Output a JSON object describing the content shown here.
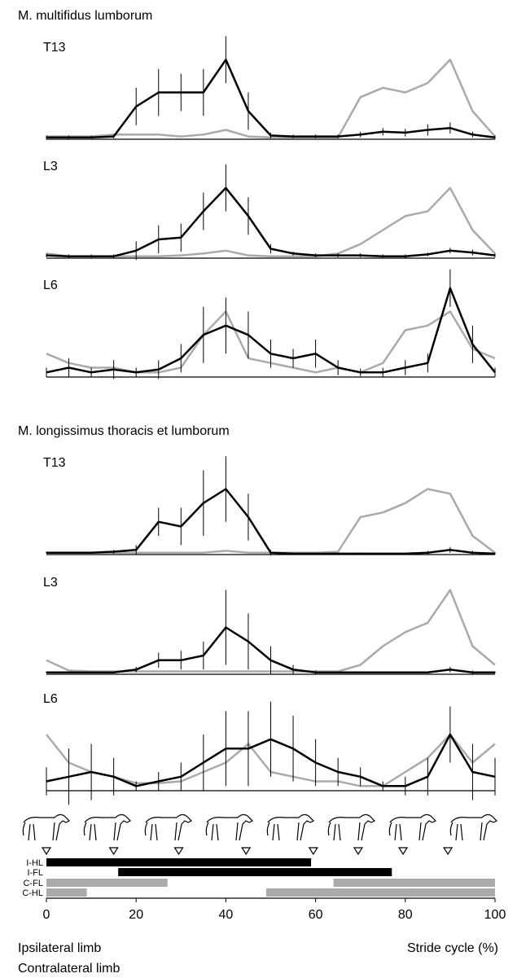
{
  "section_titles": [
    "M. multifidus lumborum",
    "M. longissimus thoracis et lumborum"
  ],
  "legend": [
    {
      "label": "Ipsilateral limb",
      "color": "#000000"
    },
    {
      "label": "Contralateral limb",
      "color": "#aaaaaa"
    }
  ],
  "chart_data": [
    {
      "type": "line",
      "label": "T13",
      "ylim": [
        0,
        1
      ],
      "xlim": [
        0,
        100
      ],
      "x": [
        0,
        5,
        10,
        15,
        20,
        25,
        30,
        35,
        40,
        45,
        50,
        55,
        60,
        65,
        70,
        75,
        80,
        85,
        90,
        95,
        100
      ],
      "series": [
        {
          "color": "#000000",
          "values": [
            0.02,
            0.02,
            0.02,
            0.03,
            0.35,
            0.5,
            0.5,
            0.5,
            0.85,
            0.3,
            0.04,
            0.03,
            0.03,
            0.03,
            0.05,
            0.08,
            0.07,
            0.1,
            0.12,
            0.05,
            0.02
          ],
          "errors": [
            0.02,
            0.02,
            0.02,
            0.02,
            0.2,
            0.25,
            0.2,
            0.25,
            0.25,
            0.2,
            0.03,
            0.02,
            0.02,
            0.02,
            0.03,
            0.04,
            0.04,
            0.06,
            0.06,
            0.03,
            0.02
          ]
        },
        {
          "color": "#aaaaaa",
          "values": [
            0.03,
            0.03,
            0.03,
            0.05,
            0.05,
            0.05,
            0.03,
            0.05,
            0.1,
            0.03,
            0.02,
            0.02,
            0.02,
            0.02,
            0.45,
            0.55,
            0.5,
            0.6,
            0.85,
            0.3,
            0.03
          ]
        }
      ]
    },
    {
      "type": "line",
      "label": "L3",
      "ylim": [
        0,
        1
      ],
      "xlim": [
        0,
        100
      ],
      "x": [
        0,
        5,
        10,
        15,
        20,
        25,
        30,
        35,
        40,
        45,
        50,
        55,
        60,
        65,
        70,
        75,
        80,
        85,
        90,
        95,
        100
      ],
      "series": [
        {
          "color": "#000000",
          "values": [
            0.03,
            0.02,
            0.02,
            0.02,
            0.08,
            0.2,
            0.22,
            0.5,
            0.75,
            0.45,
            0.1,
            0.05,
            0.03,
            0.03,
            0.03,
            0.02,
            0.02,
            0.04,
            0.08,
            0.06,
            0.03
          ],
          "errors": [
            0.02,
            0.02,
            0.02,
            0.02,
            0.1,
            0.15,
            0.15,
            0.2,
            0.25,
            0.2,
            0.05,
            0.02,
            0.02,
            0.02,
            0.02,
            0.02,
            0.02,
            0.02,
            0.03,
            0.03,
            0.02
          ]
        },
        {
          "color": "#aaaaaa",
          "values": [
            0.05,
            0.02,
            0.02,
            0.02,
            0.02,
            0.02,
            0.03,
            0.05,
            0.08,
            0.03,
            0.02,
            0.02,
            0.02,
            0.05,
            0.15,
            0.3,
            0.45,
            0.5,
            0.75,
            0.3,
            0.05
          ]
        }
      ]
    },
    {
      "type": "line",
      "label": "L6",
      "ylim": [
        0,
        1
      ],
      "xlim": [
        0,
        100
      ],
      "x": [
        0,
        5,
        10,
        15,
        20,
        25,
        30,
        35,
        40,
        45,
        50,
        55,
        60,
        65,
        70,
        75,
        80,
        85,
        90,
        95,
        100
      ],
      "series": [
        {
          "color": "#000000",
          "values": [
            0.05,
            0.1,
            0.05,
            0.08,
            0.05,
            0.08,
            0.2,
            0.45,
            0.55,
            0.45,
            0.25,
            0.2,
            0.25,
            0.1,
            0.05,
            0.05,
            0.1,
            0.15,
            0.95,
            0.35,
            0.05
          ],
          "errors": [
            0.05,
            0.1,
            0.05,
            0.1,
            0.05,
            0.1,
            0.15,
            0.3,
            0.3,
            0.25,
            0.15,
            0.1,
            0.15,
            0.08,
            0.04,
            0.05,
            0.08,
            0.1,
            0.2,
            0.2,
            0.05
          ]
        },
        {
          "color": "#aaaaaa",
          "values": [
            0.25,
            0.15,
            0.1,
            0.1,
            0.05,
            0.05,
            0.1,
            0.45,
            0.7,
            0.2,
            0.15,
            0.1,
            0.05,
            0.1,
            0.05,
            0.15,
            0.5,
            0.55,
            0.7,
            0.3,
            0.2
          ]
        }
      ]
    },
    {
      "type": "line",
      "label": "T13",
      "ylim": [
        0,
        1
      ],
      "xlim": [
        0,
        100
      ],
      "x": [
        0,
        5,
        10,
        15,
        20,
        25,
        30,
        35,
        40,
        45,
        50,
        55,
        60,
        65,
        70,
        75,
        80,
        85,
        90,
        95,
        100
      ],
      "series": [
        {
          "color": "#000000",
          "values": [
            0.02,
            0.02,
            0.02,
            0.03,
            0.05,
            0.35,
            0.3,
            0.55,
            0.7,
            0.4,
            0.02,
            0.01,
            0.01,
            0.01,
            0.01,
            0.01,
            0.01,
            0.02,
            0.05,
            0.02,
            0.01
          ],
          "errors": [
            0.01,
            0.01,
            0.01,
            0.02,
            0.05,
            0.15,
            0.2,
            0.35,
            0.35,
            0.25,
            0.03,
            0.01,
            0.01,
            0.01,
            0.01,
            0.01,
            0.01,
            0.02,
            0.03,
            0.02,
            0.01
          ]
        },
        {
          "color": "#aaaaaa",
          "values": [
            0.02,
            0.02,
            0.02,
            0.02,
            0.02,
            0.02,
            0.02,
            0.02,
            0.04,
            0.02,
            0.02,
            0.02,
            0.02,
            0.03,
            0.4,
            0.45,
            0.55,
            0.7,
            0.65,
            0.2,
            0.02
          ]
        }
      ]
    },
    {
      "type": "line",
      "label": "L3",
      "ylim": [
        0,
        1
      ],
      "xlim": [
        0,
        100
      ],
      "x": [
        0,
        5,
        10,
        15,
        20,
        25,
        30,
        35,
        40,
        45,
        50,
        55,
        60,
        65,
        70,
        75,
        80,
        85,
        90,
        95,
        100
      ],
      "series": [
        {
          "color": "#000000",
          "values": [
            0.02,
            0.02,
            0.02,
            0.02,
            0.05,
            0.15,
            0.15,
            0.2,
            0.5,
            0.35,
            0.15,
            0.05,
            0.02,
            0.02,
            0.02,
            0.02,
            0.02,
            0.02,
            0.05,
            0.02,
            0.02
          ],
          "errors": [
            0.01,
            0.01,
            0.01,
            0.01,
            0.03,
            0.08,
            0.1,
            0.15,
            0.4,
            0.3,
            0.15,
            0.05,
            0.02,
            0.01,
            0.01,
            0.01,
            0.01,
            0.01,
            0.03,
            0.02,
            0.01
          ]
        },
        {
          "color": "#aaaaaa",
          "values": [
            0.15,
            0.04,
            0.03,
            0.03,
            0.03,
            0.03,
            0.03,
            0.03,
            0.03,
            0.03,
            0.03,
            0.03,
            0.03,
            0.03,
            0.1,
            0.3,
            0.45,
            0.55,
            0.9,
            0.3,
            0.1
          ]
        }
      ]
    },
    {
      "type": "line",
      "label": "L6",
      "ylim": [
        0,
        1
      ],
      "xlim": [
        0,
        100
      ],
      "x": [
        0,
        5,
        10,
        15,
        20,
        25,
        30,
        35,
        40,
        45,
        50,
        55,
        60,
        65,
        70,
        75,
        80,
        85,
        90,
        95,
        100
      ],
      "series": [
        {
          "color": "#000000",
          "values": [
            0.1,
            0.15,
            0.2,
            0.15,
            0.05,
            0.1,
            0.15,
            0.3,
            0.45,
            0.45,
            0.55,
            0.45,
            0.3,
            0.2,
            0.15,
            0.05,
            0.05,
            0.15,
            0.6,
            0.2,
            0.15
          ],
          "errors": [
            0.15,
            0.3,
            0.3,
            0.2,
            0.05,
            0.1,
            0.15,
            0.3,
            0.4,
            0.4,
            0.4,
            0.35,
            0.25,
            0.15,
            0.1,
            0.05,
            0.1,
            0.2,
            0.3,
            0.3,
            0.2
          ]
        },
        {
          "color": "#aaaaaa",
          "values": [
            0.6,
            0.3,
            0.2,
            0.15,
            0.08,
            0.08,
            0.1,
            0.2,
            0.3,
            0.5,
            0.2,
            0.15,
            0.1,
            0.1,
            0.05,
            0.05,
            0.2,
            0.35,
            0.6,
            0.3,
            0.5
          ]
        }
      ]
    },
    {
      "type": "range_bar",
      "categories": [
        "I-HL",
        "I-FL",
        "C-FL",
        "C-HL"
      ],
      "colors": [
        "#000000",
        "#000000",
        "#aaaaaa",
        "#aaaaaa"
      ],
      "segments": [
        [
          [
            0,
            59
          ]
        ],
        [
          [
            16,
            77
          ]
        ],
        [
          [
            0,
            27
          ],
          [
            64,
            100
          ]
        ],
        [
          [
            0,
            9
          ],
          [
            49,
            100
          ]
        ]
      ],
      "markers": [
        0,
        15,
        29.5,
        44.5,
        59.5,
        69.5,
        79.5,
        89.5
      ],
      "xlim": [
        0,
        100
      ],
      "xticks": [
        0,
        20,
        40,
        60,
        80,
        100
      ],
      "xlabel": "Stride cycle (%)"
    }
  ]
}
